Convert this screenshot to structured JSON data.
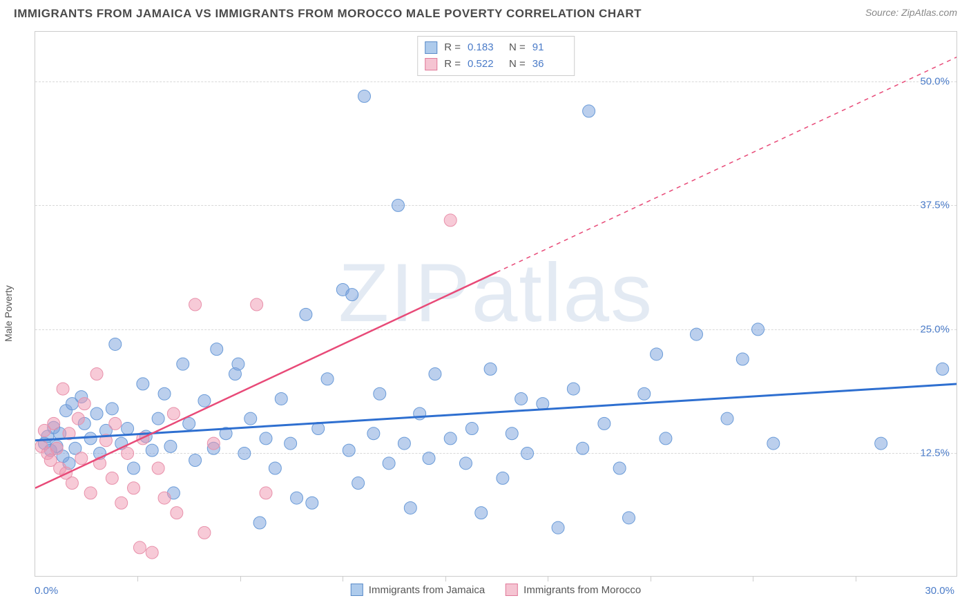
{
  "title": "IMMIGRANTS FROM JAMAICA VS IMMIGRANTS FROM MOROCCO MALE POVERTY CORRELATION CHART",
  "source": "Source: ZipAtlas.com",
  "watermark": "ZIPatlas",
  "y_axis_label": "Male Poverty",
  "chart": {
    "type": "scatter",
    "xlim": [
      0,
      30
    ],
    "ylim": [
      0,
      55
    ],
    "x_tick_labels": [
      {
        "pos": 0,
        "text": "0.0%"
      },
      {
        "pos": 30,
        "text": "30.0%"
      }
    ],
    "x_minor_ticks": [
      3.33,
      6.67,
      10,
      13.33,
      16.67,
      20,
      23.33,
      26.67
    ],
    "y_gridlines": [
      12.5,
      25.0,
      37.5,
      50.0
    ],
    "y_tick_labels": [
      "12.5%",
      "25.0%",
      "37.5%",
      "50.0%"
    ],
    "background_color": "#ffffff",
    "grid_color": "#d8d8d8",
    "watermark_color": "rgba(100,140,190,0.18)",
    "title_fontsize": 17,
    "label_fontsize": 14,
    "tick_fontsize": 15,
    "tick_color": "#4a7bc8",
    "marker_radius": 9,
    "marker_opacity": 0.55,
    "series": [
      {
        "name": "Immigrants from Jamaica",
        "color_fill": "rgba(120,160,220,0.5)",
        "color_stroke": "#6a9bd8",
        "swatch_fill": "#aecbec",
        "swatch_border": "#5a8bc8",
        "R": "0.183",
        "N": "91",
        "trend": {
          "x1": 0,
          "y1": 13.8,
          "x2": 30,
          "y2": 19.5,
          "solid_until_x": 30,
          "color": "#2e6fd0",
          "width": 3
        },
        "points": [
          [
            0.3,
            13.5
          ],
          [
            0.4,
            14.2
          ],
          [
            0.5,
            12.8
          ],
          [
            0.6,
            15.1
          ],
          [
            0.7,
            13.2
          ],
          [
            0.8,
            14.5
          ],
          [
            0.9,
            12.2
          ],
          [
            1.0,
            16.8
          ],
          [
            1.1,
            11.5
          ],
          [
            1.2,
            17.5
          ],
          [
            1.3,
            13.0
          ],
          [
            1.5,
            18.2
          ],
          [
            1.6,
            15.5
          ],
          [
            1.8,
            14.0
          ],
          [
            2.0,
            16.5
          ],
          [
            2.1,
            12.5
          ],
          [
            2.3,
            14.8
          ],
          [
            2.5,
            17.0
          ],
          [
            2.6,
            23.5
          ],
          [
            2.8,
            13.5
          ],
          [
            3.0,
            15.0
          ],
          [
            3.2,
            11.0
          ],
          [
            3.5,
            19.5
          ],
          [
            3.6,
            14.2
          ],
          [
            3.8,
            12.8
          ],
          [
            4.0,
            16.0
          ],
          [
            4.2,
            18.5
          ],
          [
            4.4,
            13.2
          ],
          [
            4.5,
            8.5
          ],
          [
            4.8,
            21.5
          ],
          [
            5.0,
            15.5
          ],
          [
            5.2,
            11.8
          ],
          [
            5.5,
            17.8
          ],
          [
            5.8,
            13.0
          ],
          [
            5.9,
            23.0
          ],
          [
            6.2,
            14.5
          ],
          [
            6.5,
            20.5
          ],
          [
            6.6,
            21.5
          ],
          [
            6.8,
            12.5
          ],
          [
            7.0,
            16.0
          ],
          [
            7.3,
            5.5
          ],
          [
            7.5,
            14.0
          ],
          [
            7.8,
            11.0
          ],
          [
            8.0,
            18.0
          ],
          [
            8.3,
            13.5
          ],
          [
            8.5,
            8.0
          ],
          [
            8.8,
            26.5
          ],
          [
            9.0,
            7.5
          ],
          [
            9.2,
            15.0
          ],
          [
            9.5,
            20.0
          ],
          [
            10.0,
            29.0
          ],
          [
            10.2,
            12.8
          ],
          [
            10.3,
            28.5
          ],
          [
            10.5,
            9.5
          ],
          [
            10.7,
            48.5
          ],
          [
            11.0,
            14.5
          ],
          [
            11.2,
            18.5
          ],
          [
            11.5,
            11.5
          ],
          [
            11.8,
            37.5
          ],
          [
            12.0,
            13.5
          ],
          [
            12.2,
            7.0
          ],
          [
            12.5,
            16.5
          ],
          [
            12.8,
            12.0
          ],
          [
            13.0,
            20.5
          ],
          [
            13.5,
            14.0
          ],
          [
            14.0,
            11.5
          ],
          [
            14.2,
            15.0
          ],
          [
            14.5,
            6.5
          ],
          [
            14.8,
            21.0
          ],
          [
            15.2,
            10.0
          ],
          [
            15.5,
            14.5
          ],
          [
            15.8,
            18.0
          ],
          [
            16.0,
            12.5
          ],
          [
            16.5,
            17.5
          ],
          [
            17.0,
            5.0
          ],
          [
            17.5,
            19.0
          ],
          [
            17.8,
            13.0
          ],
          [
            18.0,
            47.0
          ],
          [
            18.5,
            15.5
          ],
          [
            19.0,
            11.0
          ],
          [
            19.3,
            6.0
          ],
          [
            19.8,
            18.5
          ],
          [
            20.2,
            22.5
          ],
          [
            20.5,
            14.0
          ],
          [
            21.5,
            24.5
          ],
          [
            22.5,
            16.0
          ],
          [
            23.0,
            22.0
          ],
          [
            23.5,
            25.0
          ],
          [
            24.0,
            13.5
          ],
          [
            27.5,
            13.5
          ],
          [
            29.5,
            21.0
          ]
        ]
      },
      {
        "name": "Immigrants from Morocco",
        "color_fill": "rgba(240,150,175,0.5)",
        "color_stroke": "#e890aa",
        "swatch_fill": "#f5c4d2",
        "swatch_border": "#e07a9a",
        "R": "0.522",
        "N": "36",
        "trend": {
          "x1": 0,
          "y1": 9.0,
          "x2": 30,
          "y2": 52.5,
          "solid_until_x": 15.0,
          "color": "#e84a78",
          "width": 2.5
        },
        "points": [
          [
            0.2,
            13.2
          ],
          [
            0.3,
            14.8
          ],
          [
            0.4,
            12.5
          ],
          [
            0.5,
            11.8
          ],
          [
            0.6,
            15.5
          ],
          [
            0.7,
            13.0
          ],
          [
            0.8,
            11.0
          ],
          [
            0.9,
            19.0
          ],
          [
            1.0,
            10.5
          ],
          [
            1.1,
            14.5
          ],
          [
            1.2,
            9.5
          ],
          [
            1.4,
            16.0
          ],
          [
            1.5,
            12.0
          ],
          [
            1.6,
            17.5
          ],
          [
            1.8,
            8.5
          ],
          [
            2.0,
            20.5
          ],
          [
            2.1,
            11.5
          ],
          [
            2.3,
            13.8
          ],
          [
            2.5,
            10.0
          ],
          [
            2.6,
            15.5
          ],
          [
            2.8,
            7.5
          ],
          [
            3.0,
            12.5
          ],
          [
            3.2,
            9.0
          ],
          [
            3.4,
            3.0
          ],
          [
            3.5,
            14.0
          ],
          [
            3.8,
            2.5
          ],
          [
            4.0,
            11.0
          ],
          [
            4.2,
            8.0
          ],
          [
            4.5,
            16.5
          ],
          [
            4.6,
            6.5
          ],
          [
            5.2,
            27.5
          ],
          [
            5.5,
            4.5
          ],
          [
            5.8,
            13.5
          ],
          [
            7.2,
            27.5
          ],
          [
            7.5,
            8.5
          ],
          [
            13.5,
            36.0
          ]
        ]
      }
    ],
    "legend_top": {
      "labels": {
        "r": "R  =",
        "n": "N  ="
      }
    },
    "legend_bottom_gap": 30
  }
}
